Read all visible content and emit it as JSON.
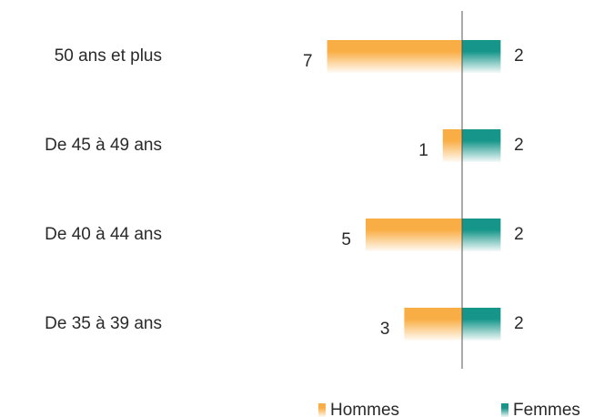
{
  "chart_data": {
    "type": "butterfly-bar",
    "categories": [
      "50 ans et plus",
      "De 45 à 49 ans",
      "De 40 à 44 ans",
      "De 35 à 39 ans"
    ],
    "series": [
      {
        "name": "Hommes",
        "color": "#f9ae45",
        "values": [
          7,
          1,
          5,
          3
        ]
      },
      {
        "name": "Femmes",
        "color": "#16968a",
        "values": [
          2,
          2,
          2,
          2
        ]
      }
    ]
  }
}
